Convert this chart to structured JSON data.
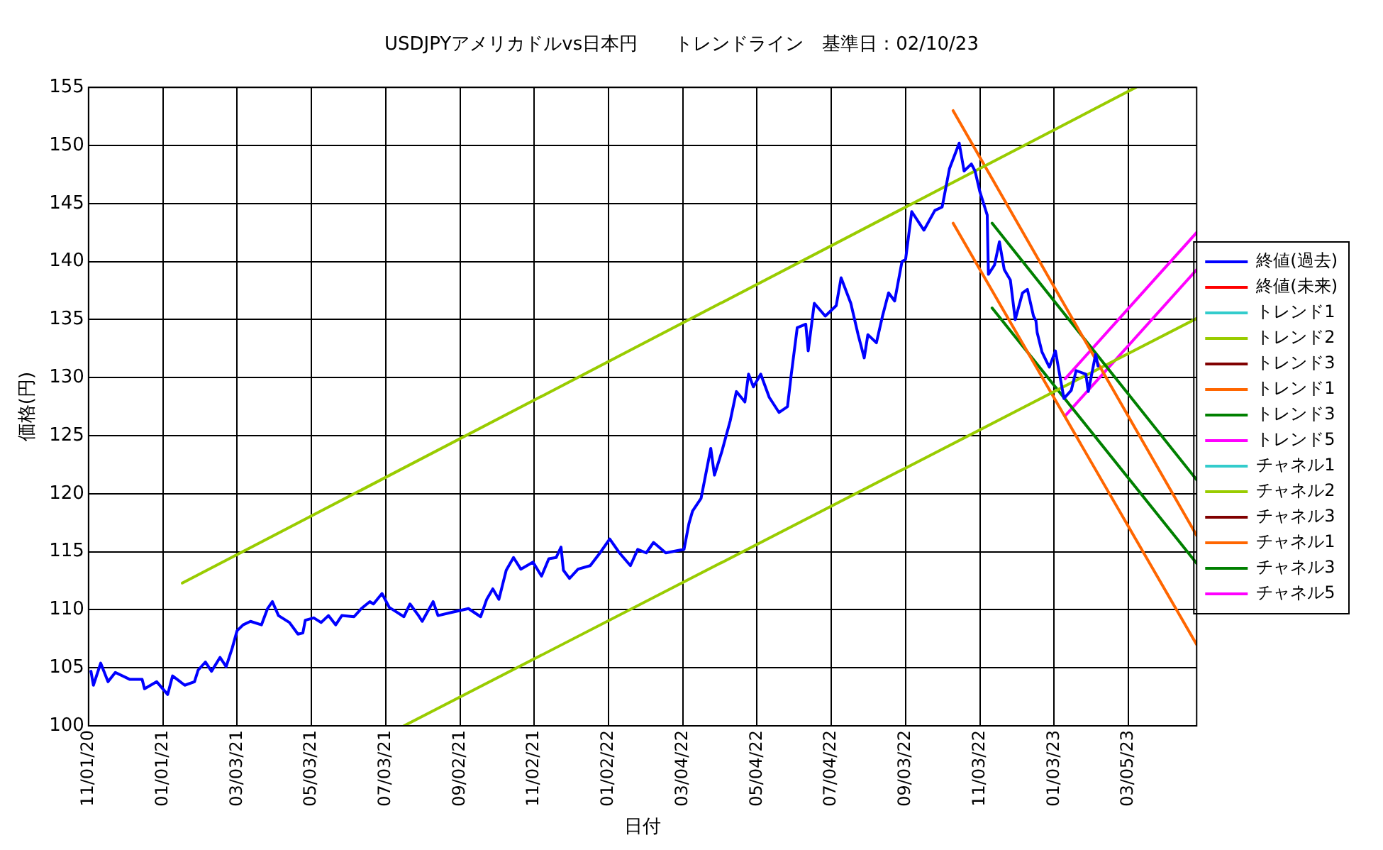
{
  "chart_data": {
    "type": "line",
    "title": "USDJPYアメリカドルvs日本円　　トレンドライン　基準日：02/10/23",
    "xlabel": "日付",
    "ylabel": "価格(円)",
    "xlim": [
      "2020-11-01",
      "2023-04-30"
    ],
    "xticks": [
      {
        "value": "2020-11-01",
        "label": "11/01/20"
      },
      {
        "value": "2021-01-01",
        "label": "01/01/21"
      },
      {
        "value": "2021-03-03",
        "label": "03/03/21"
      },
      {
        "value": "2021-05-03",
        "label": "05/03/21"
      },
      {
        "value": "2021-07-03",
        "label": "07/03/21"
      },
      {
        "value": "2021-09-02",
        "label": "09/02/21"
      },
      {
        "value": "2021-11-02",
        "label": "11/02/21"
      },
      {
        "value": "2022-01-02",
        "label": "01/02/22"
      },
      {
        "value": "2022-03-04",
        "label": "03/04/22"
      },
      {
        "value": "2022-05-04",
        "label": "05/04/22"
      },
      {
        "value": "2022-07-04",
        "label": "07/04/22"
      },
      {
        "value": "2022-09-03",
        "label": "09/03/22"
      },
      {
        "value": "2022-11-03",
        "label": "11/03/22"
      },
      {
        "value": "2023-01-03",
        "label": "01/03/23"
      },
      {
        "value": "2023-03-05",
        "label": "03/05/23"
      }
    ],
    "ylim": [
      100,
      155
    ],
    "yticks": [
      100,
      105,
      110,
      115,
      120,
      125,
      130,
      135,
      140,
      145,
      150,
      155
    ],
    "grid": true,
    "legend": "right",
    "marker": "none",
    "line_style": "solid",
    "series": [
      {
        "name": "終値(過去)",
        "color": "#0000ff",
        "x": [
          "2020-11-03",
          "2020-11-05",
          "2020-11-11",
          "2020-11-17",
          "2020-11-23",
          "2020-12-05",
          "2020-12-15",
          "2020-12-17",
          "2020-12-27",
          "2021-01-05",
          "2021-01-09",
          "2021-01-19",
          "2021-01-27",
          "2021-01-30",
          "2021-02-05",
          "2021-02-10",
          "2021-02-17",
          "2021-02-22",
          "2021-02-27",
          "2021-03-03",
          "2021-03-08",
          "2021-03-14",
          "2021-03-23",
          "2021-03-28",
          "2021-04-01",
          "2021-04-06",
          "2021-04-15",
          "2021-04-22",
          "2021-04-26",
          "2021-04-28",
          "2021-05-05",
          "2021-05-11",
          "2021-05-17",
          "2021-05-23",
          "2021-05-28",
          "2021-06-07",
          "2021-06-13",
          "2021-06-20",
          "2021-06-23",
          "2021-06-30",
          "2021-07-06",
          "2021-07-12",
          "2021-07-18",
          "2021-07-23",
          "2021-07-30",
          "2021-08-02",
          "2021-08-11",
          "2021-08-15",
          "2021-08-27",
          "2021-09-09",
          "2021-09-19",
          "2021-09-24",
          "2021-09-29",
          "2021-10-04",
          "2021-10-10",
          "2021-10-16",
          "2021-10-22",
          "2021-11-01",
          "2021-11-08",
          "2021-11-14",
          "2021-11-20",
          "2021-11-24",
          "2021-11-26",
          "2021-12-01",
          "2021-12-08",
          "2021-12-18",
          "2021-12-26",
          "2022-01-03",
          "2022-01-11",
          "2022-01-20",
          "2022-01-26",
          "2022-02-02",
          "2022-02-08",
          "2022-02-18",
          "2022-03-05",
          "2022-03-09",
          "2022-03-12",
          "2022-03-19",
          "2022-03-27",
          "2022-03-30",
          "2022-04-05",
          "2022-04-12",
          "2022-04-17",
          "2022-04-24",
          "2022-04-27",
          "2022-05-01",
          "2022-05-07",
          "2022-05-14",
          "2022-05-22",
          "2022-05-29",
          "2022-06-01",
          "2022-06-06",
          "2022-06-13",
          "2022-06-15",
          "2022-06-20",
          "2022-06-29",
          "2022-07-08",
          "2022-07-12",
          "2022-07-20",
          "2022-07-26",
          "2022-07-31",
          "2022-08-03",
          "2022-08-10",
          "2022-08-15",
          "2022-08-20",
          "2022-08-25",
          "2022-08-31",
          "2022-09-03",
          "2022-09-08",
          "2022-09-18",
          "2022-09-27",
          "2022-10-03",
          "2022-10-09",
          "2022-10-17",
          "2022-10-21",
          "2022-10-27",
          "2022-10-30",
          "2022-11-03",
          "2022-11-09",
          "2022-11-10",
          "2022-11-15",
          "2022-11-19",
          "2022-11-23",
          "2022-11-28",
          "2022-12-02",
          "2022-12-08",
          "2022-12-12",
          "2022-12-17",
          "2022-12-19",
          "2022-12-20",
          "2022-12-24",
          "2022-12-30",
          "2023-01-04",
          "2023-01-11",
          "2023-01-17",
          "2023-01-21",
          "2023-01-29",
          "2023-01-31",
          "2023-02-06",
          "2023-02-08"
        ],
        "values": [
          104.7,
          103.5,
          105.4,
          103.8,
          104.6,
          104.0,
          104.0,
          103.2,
          103.8,
          102.7,
          104.3,
          103.5,
          103.8,
          104.8,
          105.5,
          104.7,
          105.9,
          105.1,
          106.7,
          108.2,
          108.7,
          109.0,
          108.7,
          110.1,
          110.7,
          109.5,
          108.9,
          107.9,
          108.0,
          109.1,
          109.3,
          108.9,
          109.5,
          108.7,
          109.5,
          109.4,
          110.1,
          110.7,
          110.5,
          111.4,
          110.2,
          109.8,
          109.4,
          110.5,
          109.5,
          109.0,
          110.7,
          109.5,
          109.8,
          110.1,
          109.4,
          110.9,
          111.8,
          110.9,
          113.4,
          114.5,
          113.5,
          114.1,
          112.9,
          114.4,
          114.5,
          115.4,
          113.4,
          112.7,
          113.5,
          113.8,
          114.9,
          116.1,
          114.9,
          113.8,
          115.2,
          114.9,
          115.8,
          114.9,
          115.2,
          117.4,
          118.5,
          119.6,
          123.9,
          121.6,
          123.6,
          126.3,
          128.8,
          127.9,
          130.3,
          129.2,
          130.3,
          128.3,
          127.0,
          127.5,
          130.2,
          134.3,
          134.6,
          132.3,
          136.4,
          135.3,
          136.2,
          138.6,
          136.4,
          133.7,
          131.7,
          133.7,
          133.0,
          135.3,
          137.3,
          136.6,
          140.0,
          140.2,
          144.3,
          142.7,
          144.4,
          144.7,
          148.0,
          150.2,
          147.8,
          148.4,
          147.8,
          146.0,
          144.0,
          138.9,
          139.7,
          141.7,
          139.3,
          138.4,
          135.0,
          137.3,
          137.6,
          135.3,
          134.9,
          133.9,
          132.2,
          130.9,
          132.3,
          128.2,
          128.9,
          130.6,
          130.3,
          128.8,
          132.0,
          131.0
        ]
      },
      {
        "name": "終値(未来)",
        "color": "#ff0000"
      },
      {
        "name": "トレンド1",
        "color": "#33cccc"
      },
      {
        "name": "トレンド2",
        "color": "#99cc00",
        "x": [
          "2021-01-17",
          "2023-03-11"
        ],
        "values": [
          112.3,
          155
        ]
      },
      {
        "name": "トレンド3",
        "color": "#800000"
      },
      {
        "name": "トレンド1",
        "color": "#ff6600",
        "x": [
          "2022-10-12",
          "2023-04-30"
        ],
        "values": [
          153.0,
          116.4
        ]
      },
      {
        "name": "トレンド3",
        "color": "#008000",
        "x": [
          "2022-11-13",
          "2023-04-30"
        ],
        "values": [
          143.3,
          121.2
        ]
      },
      {
        "name": "トレンド5",
        "color": "#ff00ff",
        "x": [
          "2023-01-12",
          "2023-04-30"
        ],
        "values": [
          129.9,
          142.5
        ]
      },
      {
        "name": "チャネル1",
        "color": "#33cccc"
      },
      {
        "name": "チャネル2",
        "color": "#99cc00",
        "x": [
          "2021-07-18",
          "2023-04-30"
        ],
        "values": [
          100,
          135.1
        ]
      },
      {
        "name": "チャネル3",
        "color": "#800000"
      },
      {
        "name": "チャネル1",
        "color": "#ff6600",
        "x": [
          "2022-10-12",
          "2023-04-30"
        ],
        "values": [
          143.3,
          107.0
        ]
      },
      {
        "name": "チャネル3",
        "color": "#008000",
        "x": [
          "2022-11-13",
          "2023-04-30"
        ],
        "values": [
          136.0,
          114.0
        ]
      },
      {
        "name": "チャネル5",
        "color": "#ff00ff",
        "x": [
          "2023-01-12",
          "2023-04-30"
        ],
        "values": [
          126.7,
          139.3
        ]
      }
    ]
  }
}
